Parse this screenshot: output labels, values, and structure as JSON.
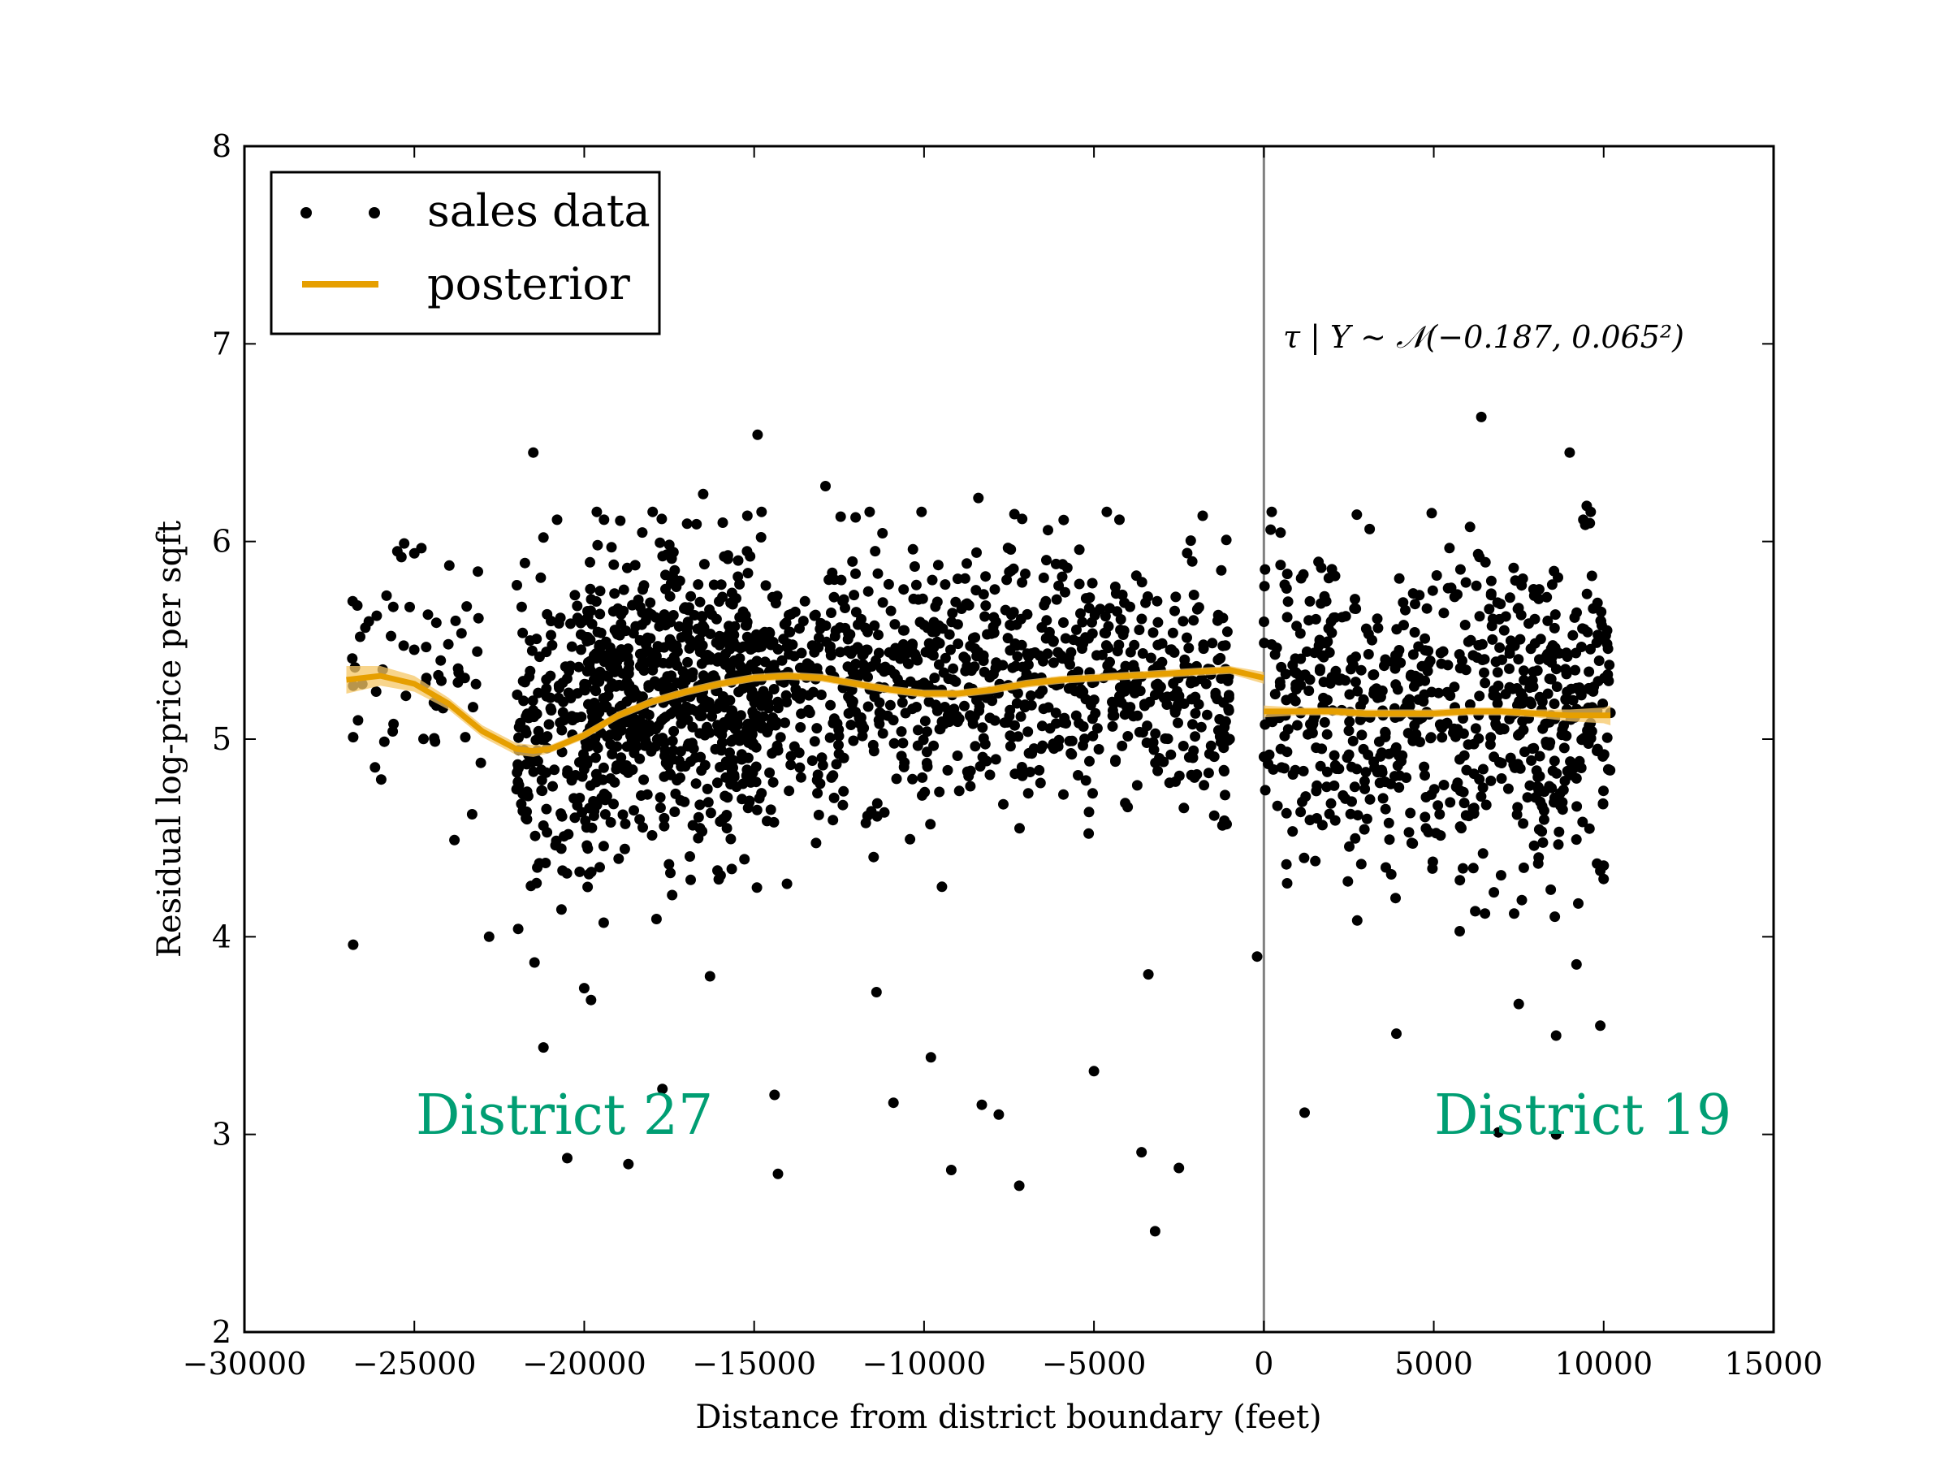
{
  "chart_data": {
    "type": "scatter",
    "title": "",
    "xlabel": "Distance from district boundary (feet)",
    "ylabel": "Residual log-price per sqft",
    "xlim": [
      -30000,
      15000
    ],
    "ylim": [
      2,
      8
    ],
    "x_ticks": [
      -30000,
      -25000,
      -20000,
      -15000,
      -10000,
      -5000,
      0,
      5000,
      10000,
      15000
    ],
    "x_tick_labels": [
      "−30000",
      "−25000",
      "−20000",
      "−15000",
      "−10000",
      "−5000",
      "0",
      "5000",
      "10000",
      "15000"
    ],
    "y_ticks": [
      2,
      3,
      4,
      5,
      6,
      7,
      8
    ],
    "y_tick_labels": [
      "2",
      "3",
      "4",
      "5",
      "6",
      "7",
      "8"
    ],
    "grid": false,
    "legend": {
      "placement": "top-left",
      "entries": [
        {
          "label": "sales data",
          "marker": "dots",
          "color": "#000000"
        },
        {
          "label": "posterior",
          "marker": "line",
          "color": "#E69F00"
        }
      ]
    },
    "boundary_x": 0,
    "boundary_color": "#808080",
    "annotation": "τ | Y ∼ 𝒩(−0.187, 0.065²)",
    "region_labels": [
      {
        "text": "District 27",
        "color": "#009E73"
      },
      {
        "text": "District 19",
        "color": "#009E73"
      }
    ],
    "colors": {
      "points": "#000000",
      "posterior": "#E69F00",
      "band": "#F5C766",
      "region_label": "#009E73"
    },
    "series": [
      {
        "name": "sales data",
        "type": "scatter",
        "dense_clusters": [
          {
            "x_range": [
              -20000,
              -1000
            ],
            "y_mean": 5.3,
            "y_sd": 0.32,
            "count": 1200
          },
          {
            "x_range": [
              -22000,
              -19000
            ],
            "y_mean": 5.0,
            "y_sd": 0.42,
            "count": 220
          },
          {
            "x_range": [
              -19000,
              -15000
            ],
            "y_mean": 5.2,
            "y_sd": 0.4,
            "count": 260
          },
          {
            "x_range": [
              0,
              10200
            ],
            "y_mean": 5.15,
            "y_sd": 0.38,
            "count": 700
          },
          {
            "x_range": [
              -27000,
              -23000
            ],
            "y_mean": 5.35,
            "y_sd": 0.35,
            "count": 55
          }
        ],
        "points": [
          [
            -26800,
            3.96
          ],
          [
            -26800,
            5.01
          ],
          [
            -26800,
            5.27
          ],
          [
            -25500,
            5.95
          ],
          [
            -25300,
            5.99
          ],
          [
            -25000,
            5.94
          ],
          [
            -24600,
            5.63
          ],
          [
            -24000,
            5.48
          ],
          [
            -23500,
            5.01
          ],
          [
            -23300,
            4.62
          ],
          [
            -22800,
            4.0
          ],
          [
            -21500,
            6.45
          ],
          [
            -21200,
            6.02
          ],
          [
            -21200,
            3.44
          ],
          [
            -20800,
            6.11
          ],
          [
            -20500,
            2.88
          ],
          [
            -20000,
            3.74
          ],
          [
            -19800,
            3.68
          ],
          [
            -18700,
            2.85
          ],
          [
            -18500,
            5.88
          ],
          [
            -17700,
            3.23
          ],
          [
            -16500,
            6.24
          ],
          [
            -16300,
            3.8
          ],
          [
            -15200,
            6.13
          ],
          [
            -14900,
            6.54
          ],
          [
            -14400,
            3.2
          ],
          [
            -14300,
            2.8
          ],
          [
            -12900,
            6.28
          ],
          [
            -11400,
            3.72
          ],
          [
            -10900,
            3.16
          ],
          [
            -9800,
            3.39
          ],
          [
            -9200,
            2.82
          ],
          [
            -8400,
            6.22
          ],
          [
            -8300,
            3.15
          ],
          [
            -7800,
            3.1
          ],
          [
            -7200,
            2.74
          ],
          [
            -5000,
            3.32
          ],
          [
            -3600,
            2.91
          ],
          [
            -3400,
            3.81
          ],
          [
            -3200,
            2.51
          ],
          [
            -2500,
            2.83
          ],
          [
            -1800,
            6.13
          ],
          [
            -200,
            3.9
          ],
          [
            200,
            6.06
          ],
          [
            1200,
            3.11
          ],
          [
            3900,
            3.51
          ],
          [
            6400,
            6.63
          ],
          [
            6900,
            3.01
          ],
          [
            7500,
            3.66
          ],
          [
            8600,
            3.0
          ],
          [
            8600,
            3.5
          ],
          [
            9000,
            6.45
          ],
          [
            9200,
            3.86
          ],
          [
            9400,
            6.11
          ],
          [
            9500,
            6.18
          ],
          [
            9900,
            3.55
          ],
          [
            10000,
            4.36
          ],
          [
            10100,
            5.55
          ]
        ]
      },
      {
        "name": "posterior",
        "type": "line",
        "segments": [
          {
            "x": [
              -27000,
              -26000,
              -25000,
              -24000,
              -23000,
              -22000,
              -21500,
              -21000,
              -20000,
              -19000,
              -18000,
              -17000,
              -16000,
              -15000,
              -14000,
              -13000,
              -12000,
              -11000,
              -10000,
              -9000,
              -8000,
              -7000,
              -6000,
              -5000,
              -4000,
              -3000,
              -2000,
              -1000,
              0
            ],
            "y": [
              5.3,
              5.32,
              5.28,
              5.18,
              5.04,
              4.95,
              4.94,
              4.95,
              5.02,
              5.12,
              5.19,
              5.24,
              5.28,
              5.31,
              5.32,
              5.31,
              5.28,
              5.25,
              5.23,
              5.23,
              5.25,
              5.28,
              5.3,
              5.31,
              5.32,
              5.33,
              5.34,
              5.35,
              5.31
            ],
            "band_halfwidth": [
              0.07,
              0.05,
              0.04,
              0.03,
              0.03,
              0.03,
              0.03,
              0.02,
              0.02,
              0.02,
              0.02,
              0.02,
              0.02,
              0.02,
              0.02,
              0.02,
              0.02,
              0.02,
              0.02,
              0.02,
              0.02,
              0.02,
              0.02,
              0.02,
              0.02,
              0.02,
              0.02,
              0.02,
              0.03
            ]
          },
          {
            "x": [
              0,
              1000,
              2000,
              3000,
              4000,
              5000,
              6000,
              7000,
              8000,
              9000,
              10000,
              10200
            ],
            "y": [
              5.14,
              5.14,
              5.14,
              5.13,
              5.13,
              5.13,
              5.14,
              5.14,
              5.13,
              5.12,
              5.12,
              5.12
            ],
            "band_halfwidth": [
              0.03,
              0.02,
              0.02,
              0.02,
              0.02,
              0.02,
              0.02,
              0.02,
              0.02,
              0.03,
              0.04,
              0.05
            ]
          }
        ]
      }
    ]
  }
}
